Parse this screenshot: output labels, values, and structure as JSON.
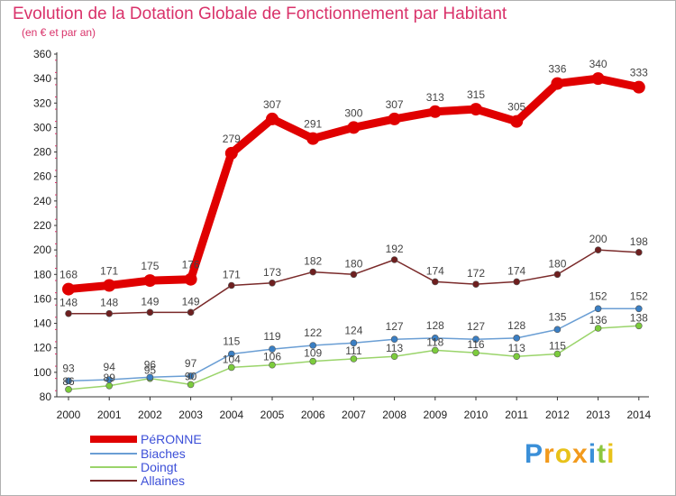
{
  "title": "Evolution de la Dotation Globale de Fonctionnement par Habitant",
  "subtitle": "(en € et par an)",
  "logo": {
    "text": "Proxiti",
    "letters": [
      "P",
      "r",
      "o",
      "x",
      "i",
      "t",
      "i"
    ]
  },
  "chart_data": {
    "type": "line",
    "title": "Evolution de la Dotation Globale de Fonctionnement par Habitant",
    "ylabel": "(en € et par an)",
    "xlabel": "",
    "ylim": [
      80,
      360
    ],
    "yticks": [
      80,
      100,
      120,
      140,
      160,
      180,
      200,
      220,
      240,
      260,
      280,
      300,
      320,
      340,
      360
    ],
    "x": [
      "2000",
      "2001",
      "2002",
      "2003",
      "2004",
      "2005",
      "2006",
      "2007",
      "2008",
      "2009",
      "2010",
      "2011",
      "2012",
      "2013",
      "2014"
    ],
    "series": [
      {
        "name": "Allaines",
        "color": "#7a2a2a",
        "values": [
          148,
          148,
          149,
          149,
          171,
          173,
          182,
          180,
          192,
          174,
          172,
          174,
          180,
          200,
          198
        ]
      },
      {
        "name": "Doingt",
        "color": "#9ad46a",
        "values": [
          86,
          89,
          95,
          90,
          104,
          106,
          109,
          111,
          113,
          118,
          116,
          113,
          115,
          136,
          138
        ]
      },
      {
        "name": "Biaches",
        "color": "#6a9ed4",
        "values": [
          93,
          94,
          96,
          97,
          115,
          119,
          122,
          124,
          127,
          128,
          127,
          128,
          135,
          152,
          152
        ]
      },
      {
        "name": "PéRONNE",
        "color": "#e00000",
        "values": [
          168,
          171,
          175,
          176,
          279,
          307,
          291,
          300,
          307,
          313,
          315,
          305,
          336,
          340,
          333
        ]
      }
    ],
    "legend": [
      "PéRONNE",
      "Biaches",
      "Doingt",
      "Allaines"
    ],
    "legend_position": "bottom-left"
  }
}
